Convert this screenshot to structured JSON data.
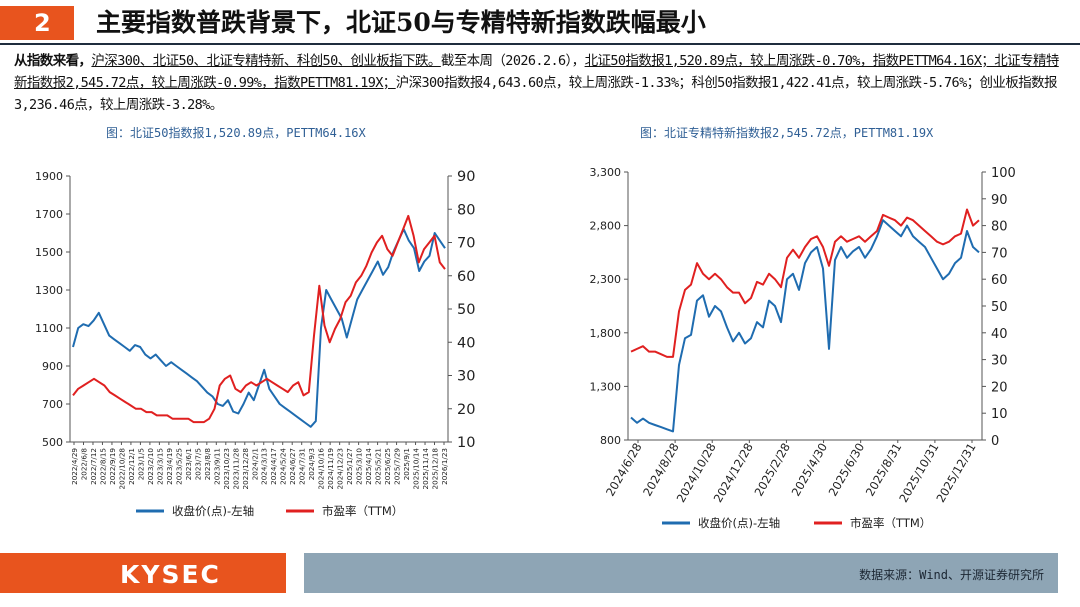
{
  "header": {
    "number": "2",
    "title": "主要指数普跌背景下，北证50与专精特新指数跌幅最小"
  },
  "summary": {
    "lead": "从指数来看，",
    "part1": "沪深300、北证50、北证专精特新、科创50、创业板指下跌。",
    "part2": "截至本周（2026.2.6），",
    "part3": "北证50指数报1,520.89点，较上周涨跌-0.70%，指数PETTM64.16X；北证专精特新指数报2,545.72点，较上周涨跌-0.99%，指数PETTM81.19X；",
    "part4": "沪深300指数报4,643.60点，较上周涨跌-1.33%；科创50指数报1,422.41点，较上周涨跌-5.76%；创业板指数报3,236.46点，较上周涨跌-3.28%。"
  },
  "chart_data": [
    {
      "type": "line",
      "title": "图：北证50指数报1,520.89点，PETTM64.16X",
      "x_ticks": [
        "2022/4/29",
        "2022/6/8",
        "2022/7/12",
        "2022/8/15",
        "2022/9/19",
        "2022/10/28",
        "2022/12/1",
        "2023/1/5",
        "2023/2/10",
        "2023/3/15",
        "2023/4/19",
        "2023/5/25",
        "2023/6/1",
        "2023/7/5",
        "2023/8/8",
        "2023/9/11",
        "2023/10/23",
        "2023/11/28",
        "2023/12/28",
        "2024/2/1",
        "2024/3/13",
        "2024/4/17",
        "2024/5/24",
        "2024/6/27",
        "2024/7/31",
        "2024/9/3",
        "2024/10/16",
        "2024/11/19",
        "2024/12/23",
        "2025/1/27",
        "2025/3/10",
        "2025/4/14",
        "2025/5/21",
        "2025/6/25",
        "2025/7/29",
        "2025/9/1",
        "2025/10/14",
        "2025/11/14",
        "2025/12/18",
        "2026/1/23"
      ],
      "y_left": {
        "ticks": [
          "500",
          "700",
          "900",
          "1100",
          "1300",
          "1500",
          "1700",
          "1900"
        ],
        "range": [
          500,
          1900
        ]
      },
      "y_right": {
        "ticks": [
          "10",
          "20",
          "30",
          "40",
          "50",
          "60",
          "70",
          "80",
          "90"
        ],
        "range": [
          10,
          90
        ]
      },
      "legend": "bottom",
      "series": [
        {
          "name": "收盘价(点)-左轴",
          "axis": "left",
          "color": "#1f6cb0",
          "values": [
            1000,
            1100,
            1120,
            1110,
            1140,
            1180,
            1120,
            1060,
            1040,
            1020,
            1000,
            980,
            1010,
            1000,
            960,
            940,
            960,
            930,
            900,
            920,
            900,
            880,
            860,
            840,
            820,
            790,
            760,
            740,
            700,
            690,
            720,
            660,
            650,
            700,
            760,
            720,
            800,
            880,
            780,
            740,
            700,
            680,
            660,
            640,
            620,
            600,
            580,
            610,
            1100,
            1300,
            1250,
            1200,
            1150,
            1050,
            1150,
            1250,
            1300,
            1350,
            1400,
            1450,
            1380,
            1420,
            1500,
            1560,
            1620,
            1560,
            1520,
            1400,
            1450,
            1480,
            1600,
            1560,
            1520
          ]
        },
        {
          "name": "市盈率（TTM）",
          "axis": "right",
          "color": "#e02020",
          "values": [
            24,
            26,
            27,
            28,
            29,
            28,
            27,
            25,
            24,
            23,
            22,
            21,
            20,
            20,
            19,
            19,
            18,
            18,
            18,
            17,
            17,
            17,
            17,
            16,
            16,
            16,
            17,
            20,
            27,
            29,
            30,
            26,
            25,
            27,
            28,
            27,
            28,
            29,
            28,
            27,
            26,
            25,
            27,
            28,
            24,
            25,
            42,
            57,
            45,
            40,
            44,
            47,
            52,
            54,
            58,
            60,
            63,
            67,
            70,
            72,
            68,
            66,
            70,
            74,
            78,
            72,
            64,
            68,
            70,
            72,
            64,
            62
          ]
        }
      ]
    },
    {
      "type": "line",
      "title": "图：北证专精特新指数报2,545.72点，PETTM81.19X",
      "x_ticks": [
        "2024/6/28",
        "2024/8/28",
        "2024/10/28",
        "2024/12/28",
        "2025/2/28",
        "2025/4/30",
        "2025/6/30",
        "2025/8/31",
        "2025/10/31",
        "2025/12/31"
      ],
      "y_left": {
        "ticks": [
          "800",
          "1,300",
          "1,800",
          "2,300",
          "2,800",
          "3,300"
        ],
        "range": [
          800,
          3300
        ]
      },
      "y_right": {
        "ticks": [
          "0",
          "10",
          "20",
          "30",
          "40",
          "50",
          "60",
          "70",
          "80",
          "90",
          "100"
        ],
        "range": [
          0,
          100
        ]
      },
      "legend": "bottom",
      "series": [
        {
          "name": "收盘价(点)-左轴",
          "axis": "left",
          "color": "#1f6cb0",
          "values": [
            1010,
            960,
            1000,
            960,
            940,
            920,
            900,
            880,
            1500,
            1750,
            1780,
            2100,
            2150,
            1950,
            2050,
            2000,
            1850,
            1720,
            1800,
            1700,
            1750,
            1900,
            1850,
            2100,
            2050,
            1900,
            2300,
            2350,
            2200,
            2450,
            2550,
            2600,
            2400,
            1650,
            2480,
            2600,
            2500,
            2560,
            2600,
            2500,
            2580,
            2700,
            2850,
            2800,
            2750,
            2700,
            2800,
            2700,
            2650,
            2600,
            2500,
            2400,
            2300,
            2350,
            2450,
            2500,
            2750,
            2600,
            2550
          ]
        },
        {
          "name": "市盈率（TTM）",
          "axis": "right",
          "color": "#e02020",
          "values": [
            33,
            34,
            35,
            33,
            33,
            32,
            31,
            31,
            48,
            56,
            58,
            66,
            62,
            60,
            62,
            60,
            57,
            55,
            55,
            51,
            53,
            59,
            58,
            62,
            60,
            57,
            68,
            71,
            68,
            72,
            75,
            76,
            72,
            65,
            74,
            76,
            74,
            75,
            76,
            74,
            76,
            78,
            84,
            83,
            82,
            80,
            83,
            82,
            80,
            78,
            76,
            74,
            73,
            74,
            76,
            77,
            86,
            80,
            82
          ]
        }
      ]
    }
  ],
  "footer": {
    "logo": "KYSEC",
    "source": "数据来源：Wind、开源证券研究所"
  }
}
